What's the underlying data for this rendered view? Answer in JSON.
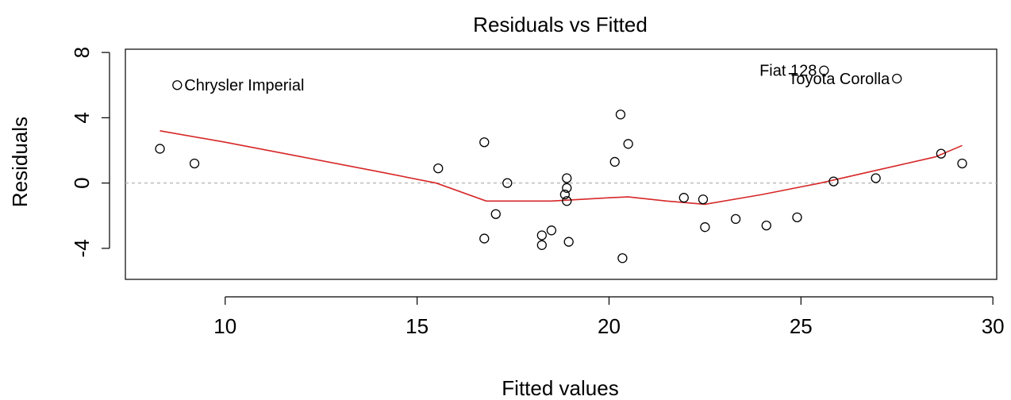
{
  "chart_data": {
    "type": "scatter",
    "title": "Residuals vs Fitted",
    "xlabel": "Fitted values",
    "ylabel": "Residuals",
    "xlim": [
      7.4,
      30.1
    ],
    "ylim": [
      -5.9,
      8.2
    ],
    "x_ticks": [
      "10",
      "15",
      "20",
      "25",
      "30"
    ],
    "y_ticks": [
      "-4",
      "0",
      "4",
      "8"
    ],
    "reference_line": {
      "y": 0,
      "style": "dashed",
      "color": "#b3b3b3"
    },
    "colors": {
      "points": "#000000",
      "smooth": "#d62728",
      "axes": "#000000"
    },
    "points": [
      {
        "x": 8.3,
        "y": 2.1
      },
      {
        "x": 8.75,
        "y": 6.0,
        "label": "Chrysler Imperial"
      },
      {
        "x": 9.2,
        "y": 1.2
      },
      {
        "x": 15.55,
        "y": 0.9
      },
      {
        "x": 16.75,
        "y": 2.5
      },
      {
        "x": 16.75,
        "y": -3.4
      },
      {
        "x": 17.05,
        "y": -1.9
      },
      {
        "x": 17.35,
        "y": 0.0
      },
      {
        "x": 18.25,
        "y": -3.2
      },
      {
        "x": 18.25,
        "y": -3.8
      },
      {
        "x": 18.5,
        "y": -2.9
      },
      {
        "x": 18.85,
        "y": -0.7
      },
      {
        "x": 18.9,
        "y": 0.3
      },
      {
        "x": 18.9,
        "y": -0.3
      },
      {
        "x": 18.9,
        "y": -1.1
      },
      {
        "x": 18.95,
        "y": -3.6
      },
      {
        "x": 20.15,
        "y": 1.3
      },
      {
        "x": 20.3,
        "y": 4.2
      },
      {
        "x": 20.35,
        "y": -4.6
      },
      {
        "x": 20.5,
        "y": 2.4
      },
      {
        "x": 21.95,
        "y": -0.9
      },
      {
        "x": 22.45,
        "y": -1.0
      },
      {
        "x": 22.5,
        "y": -2.7
      },
      {
        "x": 23.3,
        "y": -2.2
      },
      {
        "x": 24.1,
        "y": -2.6
      },
      {
        "x": 24.9,
        "y": -2.1
      },
      {
        "x": 25.6,
        "y": 6.9,
        "label": "Fiat 128"
      },
      {
        "x": 25.85,
        "y": 0.1
      },
      {
        "x": 26.95,
        "y": 0.3
      },
      {
        "x": 27.5,
        "y": 6.4,
        "label": "Toyota Corolla"
      },
      {
        "x": 28.65,
        "y": 1.8
      },
      {
        "x": 29.2,
        "y": 1.2
      }
    ],
    "smooth": [
      {
        "x": 8.3,
        "y": 3.2
      },
      {
        "x": 10.0,
        "y": 2.5
      },
      {
        "x": 12.0,
        "y": 1.6
      },
      {
        "x": 14.0,
        "y": 0.7
      },
      {
        "x": 15.5,
        "y": 0.0
      },
      {
        "x": 16.8,
        "y": -1.1
      },
      {
        "x": 18.5,
        "y": -1.1
      },
      {
        "x": 20.0,
        "y": -0.9
      },
      {
        "x": 20.5,
        "y": -0.85
      },
      {
        "x": 21.5,
        "y": -1.1
      },
      {
        "x": 22.5,
        "y": -1.3
      },
      {
        "x": 24.0,
        "y": -0.7
      },
      {
        "x": 25.5,
        "y": 0.0
      },
      {
        "x": 27.0,
        "y": 0.8
      },
      {
        "x": 28.5,
        "y": 1.6
      },
      {
        "x": 29.2,
        "y": 2.3
      }
    ]
  }
}
